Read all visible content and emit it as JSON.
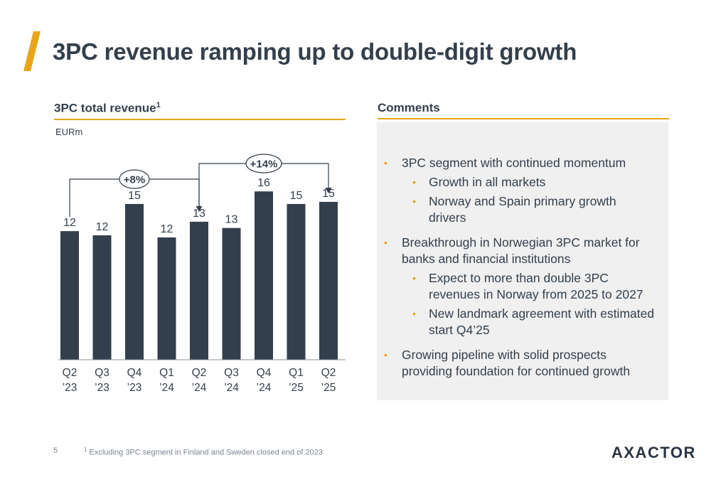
{
  "slide": {
    "title": "3PC revenue ramping up to double-digit growth",
    "page_number": "5",
    "footnote_marker": "1",
    "footnote": "Excluding 3PC segment in Finland and Sweden closed end of 2023",
    "logo_text": "AXACTOR"
  },
  "chart_panel": {
    "heading": "3PC total revenue",
    "heading_sup": "1",
    "unit": "EURm"
  },
  "chart_data": {
    "type": "bar",
    "categories": [
      [
        "Q2",
        "’23"
      ],
      [
        "Q3",
        "’23"
      ],
      [
        "Q4",
        "’23"
      ],
      [
        "Q1",
        "’24"
      ],
      [
        "Q2",
        "’24"
      ],
      [
        "Q3",
        "’24"
      ],
      [
        "Q4",
        "’24"
      ],
      [
        "Q1",
        "’25"
      ],
      [
        "Q2",
        "’25"
      ]
    ],
    "values": [
      12,
      12,
      15,
      12,
      13,
      13,
      16,
      15,
      15
    ],
    "heights": [
      12.3,
      11.9,
      14.9,
      11.7,
      13.2,
      12.6,
      16.1,
      14.9,
      15.1
    ],
    "ylim": [
      0,
      17
    ],
    "title": "",
    "xlabel": "",
    "ylabel": "",
    "bar_color": "#333f4c",
    "grid": false,
    "annotations": [
      {
        "label": "+8%",
        "from_index": 0,
        "to_index": 4
      },
      {
        "label": "+14%",
        "from_index": 4,
        "to_index": 8
      }
    ]
  },
  "comments": {
    "heading": "Comments",
    "items": [
      {
        "level": 1,
        "text": "3PC segment with continued momentum"
      },
      {
        "level": 2,
        "text": "Growth in all markets"
      },
      {
        "level": 2,
        "text": "Norway and Spain primary growth drivers"
      },
      {
        "level": 1,
        "text": "Breakthrough in Norwegian 3PC market for banks and financial institutions"
      },
      {
        "level": 2,
        "text": "Expect to more than double 3PC revenues in Norway from 2025 to 2027"
      },
      {
        "level": 2,
        "text": "New landmark agreement with estimated start Q4’25"
      },
      {
        "level": 1,
        "text": "Growing pipeline with solid prospects providing foundation for continued growth"
      }
    ]
  },
  "colors": {
    "accent": "#e8a51a",
    "text": "#333f4c",
    "panel_bg": "#f0f0f0"
  }
}
